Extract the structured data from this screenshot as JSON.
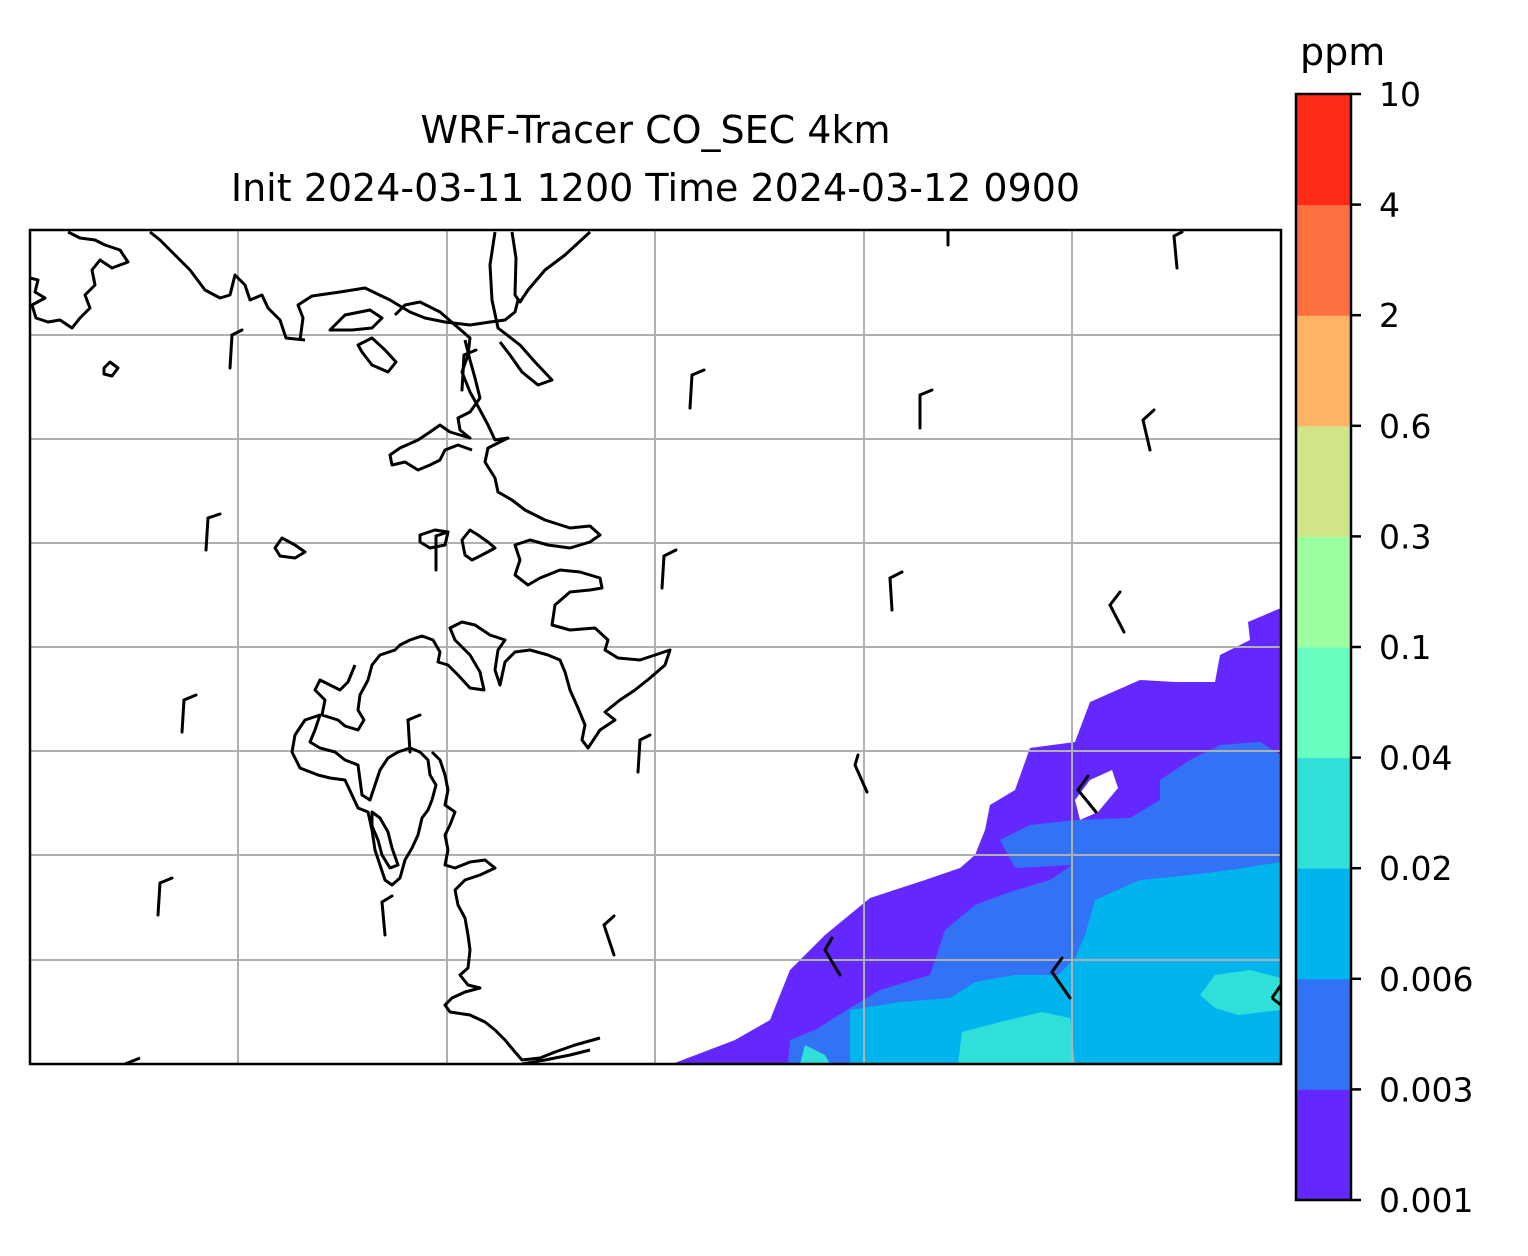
{
  "title": {
    "line1": "WRF-Tracer CO_SEC 4km",
    "line2": "Init 2024-03-11 1200 Time 2024-03-12 0900"
  },
  "colorbar": {
    "unit": "ppm",
    "levels": [
      "0.001",
      "0.003",
      "0.006",
      "0.02",
      "0.04",
      "0.1",
      "0.3",
      "0.6",
      "2",
      "4",
      "10"
    ],
    "colors": [
      "#6428ff",
      "#3272f5",
      "#00b4ee",
      "#30e0d8",
      "#68ffc0",
      "#9cffa0",
      "#d0e488",
      "#feb464",
      "#ff7040",
      "#ff2a18"
    ]
  },
  "map": {
    "gridlines": "on",
    "gridline_color": "#b0b0b0",
    "coastline_color": "#000000",
    "wind_barbs": "on"
  }
}
